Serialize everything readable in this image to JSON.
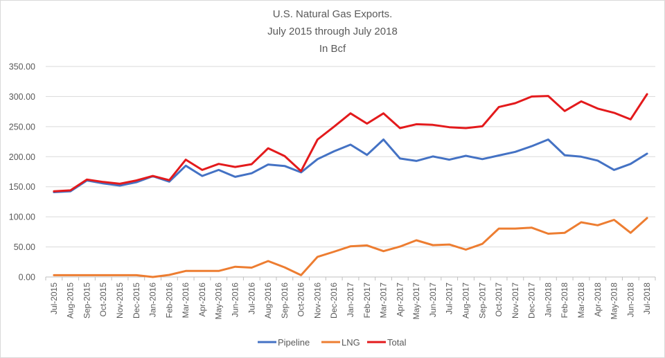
{
  "chart_data": {
    "type": "line",
    "title": [
      "U.S. Natural Gas Exports.",
      "July 2015 through July 2018",
      "In Bcf"
    ],
    "xlabel": "",
    "ylabel": "",
    "ylim": [
      0,
      350
    ],
    "yticks": [
      0,
      50,
      100,
      150,
      200,
      250,
      300,
      350
    ],
    "ytick_labels": [
      "0.00",
      "50.00",
      "100.00",
      "150.00",
      "200.00",
      "250.00",
      "300.00",
      "350.00"
    ],
    "grid": true,
    "legend_position": "bottom",
    "categories": [
      "Jul-2015",
      "Aug-2015",
      "Sep-2015",
      "Oct-2015",
      "Nov-2015",
      "Dec-2015",
      "Jan-2016",
      "Feb-2016",
      "Mar-2016",
      "Apr-2016",
      "May-2016",
      "Jun-2016",
      "Jul-2016",
      "Aug-2016",
      "Sep-2016",
      "Oct-2016",
      "Nov-2016",
      "Dec-2016",
      "Jan-2017",
      "Feb-2017",
      "Mar-2017",
      "Apr-2017",
      "May-2017",
      "Jun-2017",
      "Jul-2017",
      "Aug-2017",
      "Sep-2017",
      "Oct-2017",
      "Nov-2017",
      "Dec-2017",
      "Jan-2018",
      "Feb-2018",
      "Mar-2018",
      "Apr-2018",
      "May-2018",
      "Jun-2018",
      "Jul-2018"
    ],
    "series": [
      {
        "name": "Pipeline",
        "color": "#4472c4",
        "values": [
          141,
          142.5,
          160.5,
          155.5,
          152,
          157.5,
          167.5,
          158.5,
          185,
          168,
          178,
          166.5,
          172.5,
          187,
          184.5,
          174,
          196,
          209,
          220,
          203,
          228.5,
          197,
          193,
          200.5,
          195,
          201.5,
          196,
          202,
          208,
          217.5,
          228.5,
          202.5,
          200,
          193.5,
          178,
          188,
          205
        ]
      },
      {
        "name": "LNG",
        "color": "#ed7d31",
        "values": [
          3,
          3,
          3,
          3,
          3,
          3,
          0,
          3.5,
          10,
          10,
          10,
          17,
          15.5,
          26.5,
          16,
          3,
          33.5,
          42,
          51,
          52.5,
          43,
          50.5,
          61,
          53,
          54,
          45.5,
          55,
          80.5,
          80.5,
          82,
          72,
          73.5,
          91,
          86,
          95,
          73.5,
          98
        ]
      },
      {
        "name": "Total",
        "color": "#e31a1c",
        "values": [
          142.5,
          144,
          162,
          158,
          155,
          160.5,
          168,
          161,
          195,
          178,
          188,
          183,
          187.5,
          214,
          201,
          176,
          228.5,
          250,
          272,
          255,
          272,
          247.5,
          254,
          253,
          249,
          247.5,
          250.5,
          282.5,
          289,
          300,
          301,
          276,
          292,
          280,
          273,
          262,
          304
        ]
      }
    ]
  }
}
